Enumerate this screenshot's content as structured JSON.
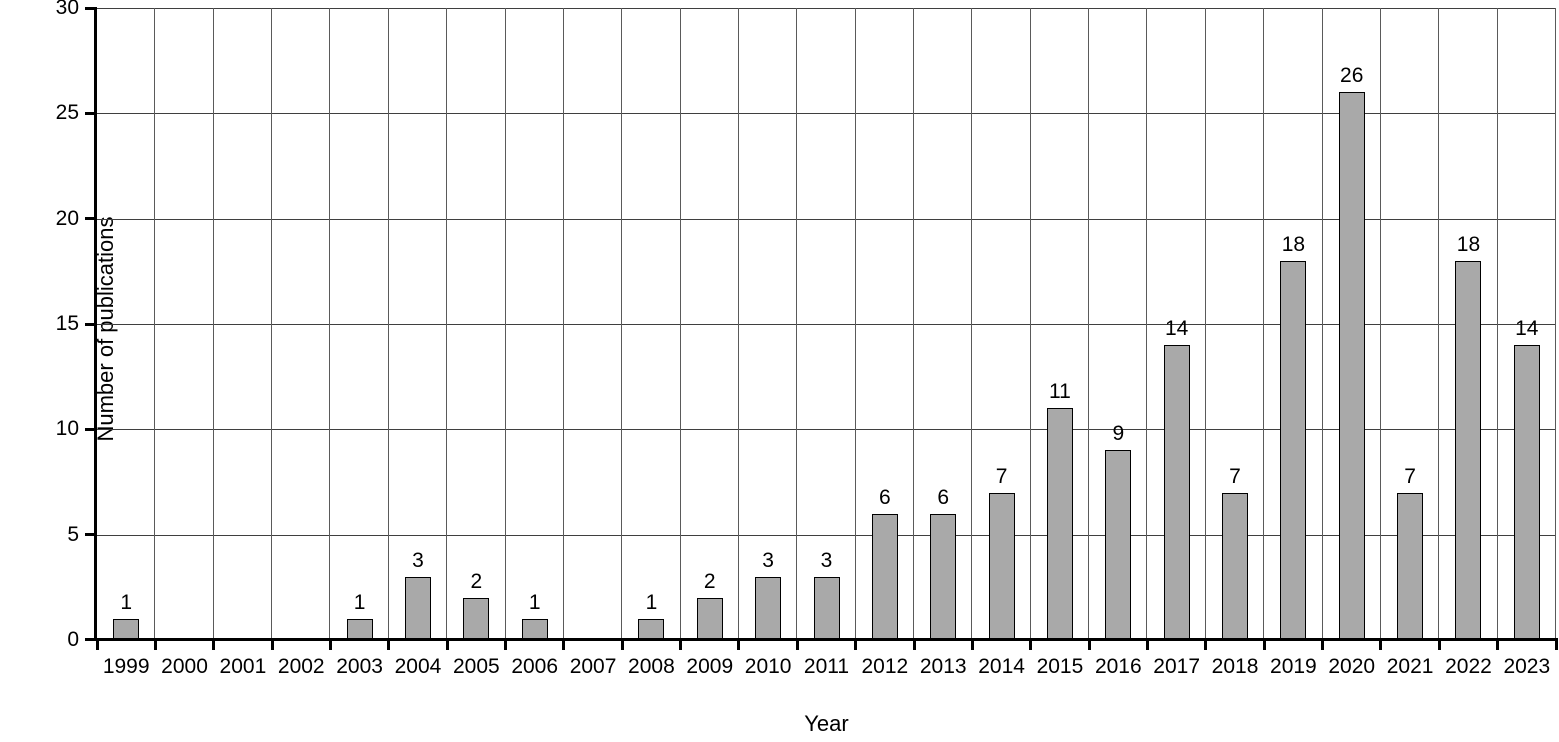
{
  "chart_data": {
    "type": "bar",
    "title": "",
    "xlabel": "Year",
    "ylabel": "Number of publications",
    "categories": [
      "1999",
      "2000",
      "2001",
      "2002",
      "2003",
      "2004",
      "2005",
      "2006",
      "2007",
      "2008",
      "2009",
      "2010",
      "2011",
      "2012",
      "2013",
      "2014",
      "2015",
      "2016",
      "2017",
      "2018",
      "2019",
      "2020",
      "2021",
      "2022",
      "2023"
    ],
    "values": [
      1,
      0,
      0,
      0,
      1,
      3,
      2,
      1,
      0,
      1,
      2,
      3,
      3,
      6,
      6,
      7,
      11,
      9,
      14,
      7,
      18,
      26,
      7,
      18,
      14
    ],
    "bar_value_labels": [
      "1",
      "",
      "",
      "",
      "1",
      "3",
      "2",
      "1",
      "",
      "1",
      "2",
      "3",
      "3",
      "6",
      "6",
      "7",
      "11",
      "9",
      "14",
      "7",
      "18",
      "26",
      "7",
      "18",
      "14"
    ],
    "ylim": [
      0,
      30
    ],
    "yticks": [
      0,
      5,
      10,
      15,
      20,
      25,
      30
    ],
    "grid": "both",
    "legend": "none",
    "colors": {
      "bar_fill": "#a9a9a9",
      "bar_border": "#000000",
      "h_gridline": "#3f3f3f",
      "v_gridline": "#5a5a5a",
      "axis": "#000000",
      "text": "#000000",
      "background": "#ffffff"
    }
  }
}
